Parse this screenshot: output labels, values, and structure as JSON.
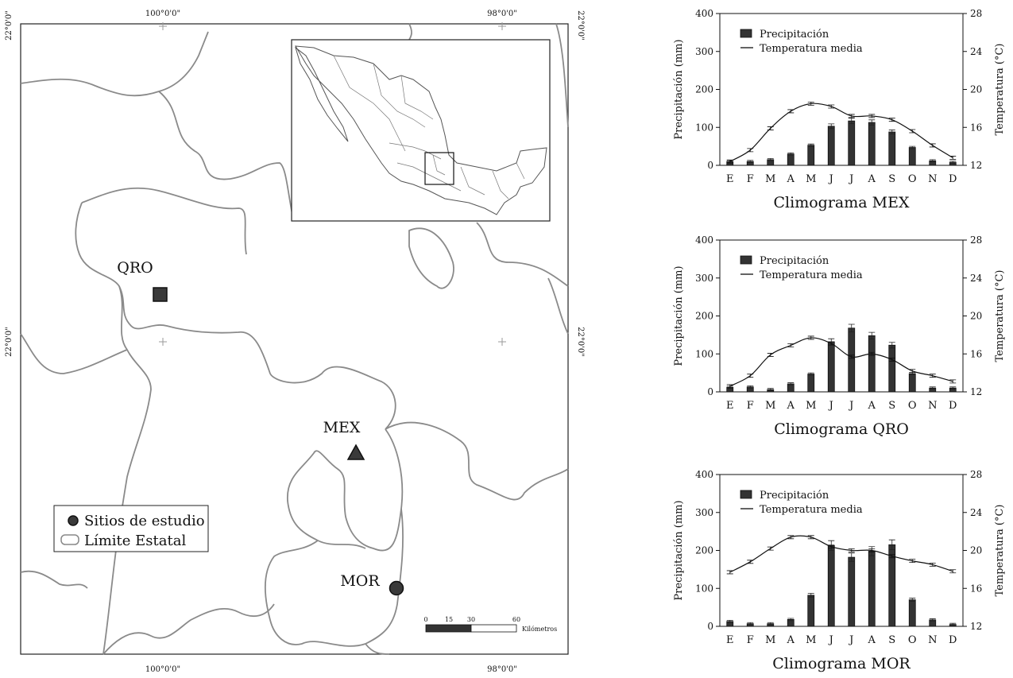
{
  "map": {
    "coords": {
      "top": [
        "100°0'0\"",
        "98°0'0\""
      ],
      "bottom": [
        "100°0'0\"",
        "98°0'0\""
      ],
      "left": [
        "22°0'0\"",
        "22°0'0\""
      ],
      "right": [
        "22°0'0\"",
        "22°0'0\""
      ]
    },
    "sites": [
      {
        "name": "QRO",
        "symbol": "square"
      },
      {
        "name": "MEX",
        "symbol": "triangle"
      },
      {
        "name": "MOR",
        "symbol": "circle"
      }
    ],
    "legend": {
      "sites_label": "Sitios de estudio",
      "boundary_label": "Límite Estatal"
    },
    "scale": {
      "ticks": [
        "0",
        "15",
        "30",
        "60"
      ],
      "unit": "Kilómetros"
    },
    "colors": {
      "boundary": "#888888",
      "symbol": "#3a3a3a"
    }
  },
  "chart_data": [
    {
      "type": "bar",
      "title": "Climograma MEX",
      "categories": [
        "E",
        "F",
        "M",
        "A",
        "M",
        "J",
        "J",
        "A",
        "S",
        "O",
        "N",
        "D"
      ],
      "ylabel": "Precipitación (mm)",
      "y2label": "Temperatura (°C)",
      "ylim": [
        0,
        400
      ],
      "y2lim": [
        12,
        28
      ],
      "yticks": [
        "0",
        "100",
        "200",
        "300",
        "400"
      ],
      "y2ticks": [
        "12",
        "16",
        "20",
        "24",
        "28"
      ],
      "legend": [
        "Precipitación",
        "Temperatura media"
      ],
      "series": [
        {
          "name": "Precipitación",
          "type": "bar",
          "axis": "left",
          "values": [
            10,
            10,
            15,
            30,
            53,
            103,
            117,
            113,
            88,
            47,
            12,
            8
          ]
        },
        {
          "name": "Temperatura media",
          "type": "line",
          "axis": "right",
          "values": [
            12.4,
            13.6,
            15.9,
            17.7,
            18.5,
            18.2,
            17.2,
            17.2,
            16.8,
            15.6,
            14.1,
            12.8
          ]
        }
      ]
    },
    {
      "type": "bar",
      "title": "Climograma QRO",
      "categories": [
        "E",
        "F",
        "M",
        "A",
        "M",
        "J",
        "J",
        "A",
        "S",
        "O",
        "N",
        "D"
      ],
      "ylabel": "Precipitación (mm)",
      "y2label": "Temperatura (°C)",
      "ylim": [
        0,
        400
      ],
      "y2lim": [
        12,
        28
      ],
      "yticks": [
        "0",
        "100",
        "200",
        "300",
        "400"
      ],
      "y2ticks": [
        "12",
        "16",
        "20",
        "24",
        "28"
      ],
      "legend": [
        "Precipitación",
        "Temperatura media"
      ],
      "series": [
        {
          "name": "Precipitación",
          "type": "bar",
          "axis": "left",
          "values": [
            12,
            13,
            6,
            21,
            47,
            132,
            168,
            148,
            123,
            48,
            10,
            10
          ]
        },
        {
          "name": "Temperatura media",
          "type": "line",
          "axis": "right",
          "values": [
            12.6,
            13.7,
            15.9,
            16.9,
            17.7,
            17.1,
            15.7,
            16.0,
            15.4,
            14.2,
            13.7,
            13.1
          ]
        }
      ]
    },
    {
      "type": "bar",
      "title": "Climograma MOR",
      "categories": [
        "E",
        "F",
        "M",
        "A",
        "M",
        "J",
        "J",
        "A",
        "S",
        "O",
        "N",
        "D"
      ],
      "ylabel": "Precipitación (mm)",
      "y2label": "Temperatura (°C)",
      "ylim": [
        0,
        400
      ],
      "y2lim": [
        12,
        28
      ],
      "yticks": [
        "0",
        "100",
        "200",
        "300",
        "400"
      ],
      "y2ticks": [
        "12",
        "16",
        "20",
        "24",
        "28"
      ],
      "legend": [
        "Precipitación",
        "Temperatura media"
      ],
      "series": [
        {
          "name": "Precipitación",
          "type": "bar",
          "axis": "left",
          "values": [
            13,
            7,
            7,
            18,
            82,
            213,
            182,
            198,
            215,
            70,
            17,
            5
          ]
        },
        {
          "name": "Temperatura media",
          "type": "line",
          "axis": "right",
          "values": [
            17.7,
            18.8,
            20.2,
            21.4,
            21.4,
            20.4,
            20.0,
            20.0,
            19.4,
            18.9,
            18.5,
            17.8
          ]
        }
      ]
    }
  ]
}
